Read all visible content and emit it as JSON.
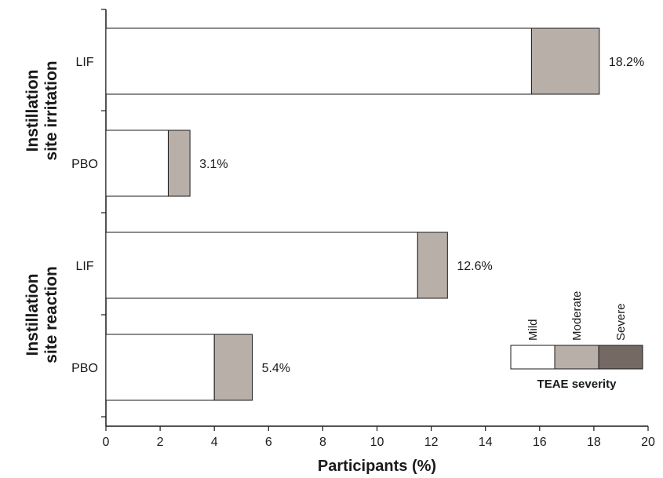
{
  "chart_data": {
    "type": "bar",
    "orientation": "horizontal",
    "stacked": true,
    "xlabel": "Participants (%)",
    "xlim": [
      0,
      20
    ],
    "xticks": [
      0,
      2,
      4,
      6,
      8,
      10,
      12,
      14,
      16,
      18,
      20
    ],
    "groups": [
      {
        "label": "Instillation site irritation",
        "label_lines": [
          "Instillation",
          "site irritation"
        ]
      },
      {
        "label": "Instillation site reaction",
        "label_lines": [
          "Instillation",
          "site reaction"
        ]
      }
    ],
    "categories": [
      {
        "group": 0,
        "label": "LIF"
      },
      {
        "group": 0,
        "label": "PBO"
      },
      {
        "group": 1,
        "label": "LIF"
      },
      {
        "group": 1,
        "label": "PBO"
      }
    ],
    "series": [
      {
        "name": "Mild",
        "color": "#ffffff",
        "values": [
          15.7,
          2.3,
          11.5,
          4.0
        ]
      },
      {
        "name": "Moderate",
        "color": "#b8afa9",
        "values": [
          2.5,
          0.8,
          1.1,
          1.4
        ]
      },
      {
        "name": "Severe",
        "color": "#756a63",
        "values": [
          0,
          0,
          0,
          0
        ]
      }
    ],
    "totals": [
      "18.2%",
      "3.1%",
      "12.6%",
      "5.4%"
    ],
    "legend": {
      "title": "TEAE severity",
      "placement": "lower-right",
      "entries": [
        "Mild",
        "Moderate",
        "Severe"
      ]
    },
    "grid": false
  }
}
